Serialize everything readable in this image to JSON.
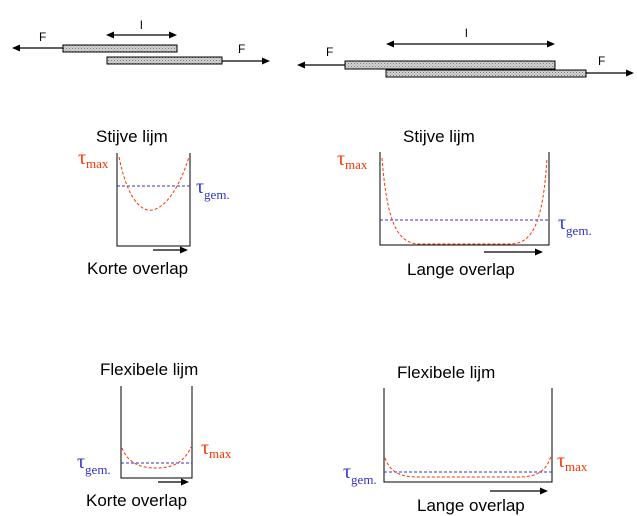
{
  "colors": {
    "max_curve": "#ff3300",
    "avg_line": "#3333cc",
    "outline": "#000000",
    "plate_fill": "#c8c8c8"
  },
  "joints": {
    "force_label": "F",
    "length_label": "l"
  },
  "tau": {
    "symbol": "τ",
    "max_sub": "max",
    "avg_sub": "gem."
  },
  "panels": [
    {
      "id": "stiff-short",
      "title": "Stijve lijm",
      "caption": "Korte overlap"
    },
    {
      "id": "stiff-long",
      "title": "Stijve lijm",
      "caption": "Lange overlap"
    },
    {
      "id": "flex-short",
      "title": "Flexibele lijm",
      "caption": "Korte overlap"
    },
    {
      "id": "flex-long",
      "title": "Flexibele lijm",
      "caption": "Lange overlap"
    }
  ]
}
